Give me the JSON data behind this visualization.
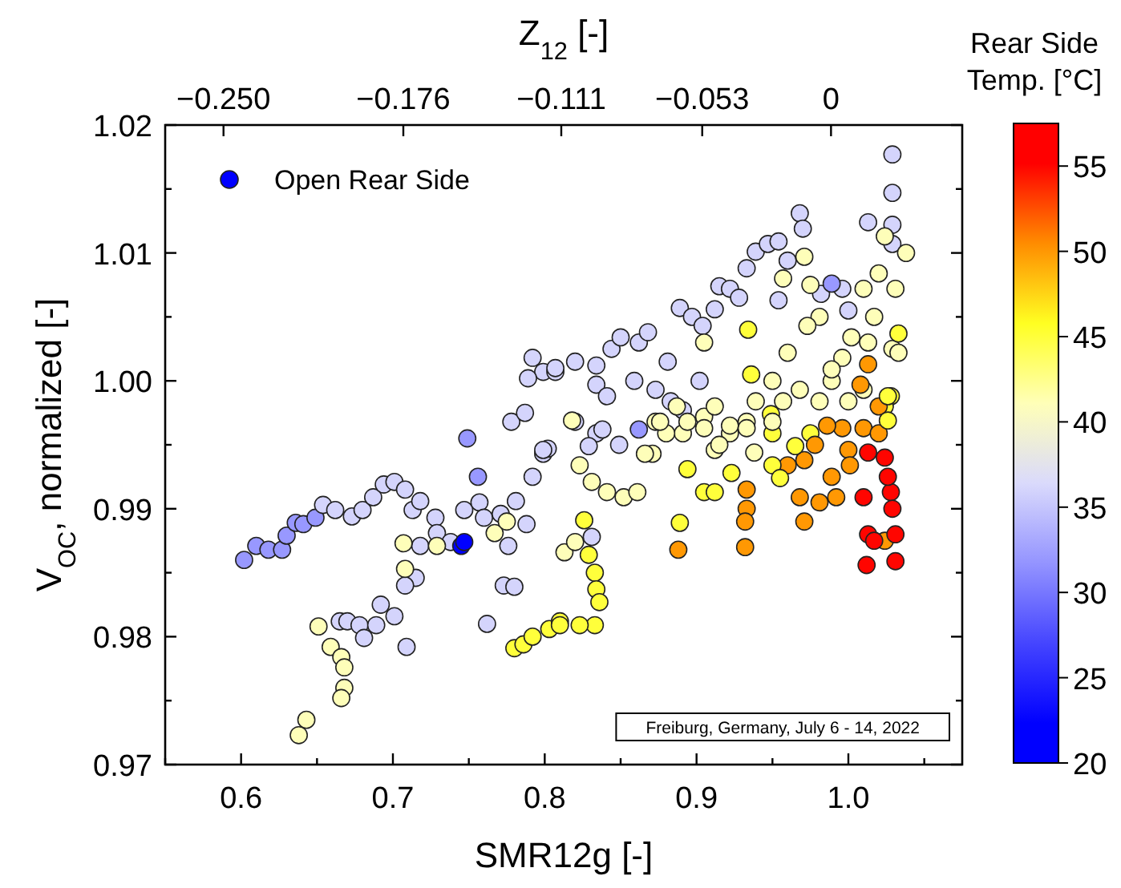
{
  "chart_data": {
    "type": "scatter",
    "xlabel": "SMR12g [-]",
    "ylabel": "V$_{OC}$, normalized [-]",
    "x2label": "Z$_{12}$ [-]",
    "clabel": "Rear Side Temp. [°C]",
    "xlim": [
      0.55,
      1.075
    ],
    "xticks": [
      {
        "value": 0.55,
        "label": null
      },
      0.6,
      {
        "value": 0.65,
        "label": null
      },
      0.7,
      {
        "value": 0.75,
        "label": null
      },
      0.8,
      {
        "value": 0.85,
        "label": null
      },
      0.9,
      {
        "value": 0.95,
        "label": null
      },
      {
        "value": 1,
        "label": "1.0"
      },
      {
        "value": 1.05,
        "label": null
      }
    ],
    "x2lim": [
      -0.274,
      0.054
    ],
    "x2ticks": [
      {
        "value": -0.25,
        "label": "−0.250"
      },
      {
        "value": -0.176,
        "label": "−0.176"
      },
      {
        "value": -0.111,
        "label": "−0.111"
      },
      {
        "value": -0.053,
        "label": "−0.053"
      },
      0
    ],
    "ylim": [
      0.97,
      1.02
    ],
    "yticks": [
      0.97,
      {
        "value": 0.975,
        "label": null
      },
      0.98,
      {
        "value": 0.985,
        "label": null
      },
      0.99,
      {
        "value": 0.995,
        "label": null
      },
      {
        "value": 1,
        "label": "1.00"
      },
      {
        "value": 1.005,
        "label": null
      },
      1.01,
      {
        "value": 1.015,
        "label": null
      },
      1.02
    ],
    "clim": [
      20,
      57.5
    ],
    "cticks": [
      20,
      25,
      30,
      35,
      40,
      45,
      50,
      55
    ],
    "legend": "top left",
    "marker": "circle",
    "annotations": [
      "Freiburg, Germany, July 6 - 14, 2022"
    ],
    "series": [
      {
        "name": "Open Rear Side",
        "x": [
          0.602,
          0.61,
          0.618,
          0.627,
          0.63,
          0.636,
          0.641,
          0.649,
          0.654,
          0.662,
          0.673,
          0.68,
          0.687,
          0.694,
          0.701,
          0.708,
          0.713,
          0.718,
          0.728,
          0.729,
          0.738,
          0.747,
          0.757,
          0.76,
          0.771,
          0.781,
          0.792,
          0.799,
          0.802,
          0.778,
          0.787,
          0.788,
          0.776,
          0.773,
          0.78,
          0.762,
          0.749,
          0.756,
          0.745,
          0.747,
          0.665,
          0.67,
          0.678,
          0.681,
          0.689,
          0.692,
          0.701,
          0.709,
          0.718,
          0.715,
          0.708,
          0.707,
          0.708,
          0.651,
          0.659,
          0.666,
          0.668,
          0.668,
          0.666,
          0.643,
          0.638,
          0.729,
          0.767,
          0.775,
          0.78,
          0.786,
          0.792,
          0.803,
          0.81,
          0.792,
          0.799,
          0.807,
          0.789,
          0.807,
          0.82,
          0.834,
          0.844,
          0.85,
          0.862,
          0.868,
          0.881,
          0.889,
          0.897,
          0.904,
          0.912,
          0.915,
          0.922,
          0.928,
          0.933,
          0.939,
          0.947,
          0.954,
          0.96,
          0.968,
          0.97,
          0.834,
          0.841,
          0.859,
          0.873,
          0.883,
          0.891,
          0.902,
          0.954,
          0.82,
          0.834,
          0.849,
          0.799,
          1.029,
          1.029,
          1.029,
          1.029,
          1.013,
          0.996,
          1.0,
          0.982,
          0.989,
          0.862,
          1.024,
          1.02,
          1.031,
          1.01,
          1.017,
          1.029,
          1.002,
          0.981,
          0.975,
          0.971,
          0.973,
          0.96,
          0.95,
          0.939,
          0.933,
          0.922,
          0.912,
          0.905,
          0.891,
          0.88,
          0.873,
          0.871,
          0.905,
          0.957,
          1.038,
          0.996,
          1.01,
          0.989,
          0.934,
          0.936,
          1.033,
          1.028,
          0.949,
          0.975,
          1.024,
          1.013,
          1.008,
          1.02,
          0.996,
          0.986,
          0.978,
          0.971,
          0.96,
          0.968,
          0.971,
          0.981,
          0.992,
          0.989,
          1.0,
          1.01,
          1.02,
          0.933,
          0.933,
          0.932,
          0.932,
          0.888,
          1.024,
          1.001,
          1.013,
          1.01,
          1.024,
          1.028,
          1.029,
          1.031,
          1.031,
          1.013,
          1.012,
          1.017,
          1.026,
          0.889,
          0.894,
          0.905,
          0.912,
          0.923,
          0.826,
          0.829,
          0.833,
          0.834,
          0.836,
          0.833,
          0.823,
          0.81,
          0.95,
          0.955,
          0.965,
          0.95,
          1.026,
          1.026,
          0.813,
          0.82,
          0.823,
          0.831,
          0.841,
          0.852,
          0.861,
          0.866,
          0.876,
          0.894,
          0.905,
          0.915,
          0.922,
          0.933,
          0.938,
          0.95,
          0.957,
          0.968,
          0.981,
          0.989,
          1.0,
          1.013,
          1.033,
          0.912,
          0.887,
          0.818,
          0.829,
          0.838,
          0.831
        ],
        "values": [
          0.986,
          0.9871,
          0.9868,
          0.9868,
          0.9879,
          0.9889,
          0.9888,
          0.9893,
          0.9903,
          0.9899,
          0.9894,
          0.9899,
          0.9909,
          0.9919,
          0.9921,
          0.9915,
          0.9899,
          0.9906,
          0.9893,
          0.9881,
          0.9874,
          0.9899,
          0.9905,
          0.9893,
          0.9896,
          0.9906,
          0.9925,
          0.9943,
          0.9947,
          0.9968,
          0.9975,
          0.9888,
          0.9871,
          0.984,
          0.9839,
          0.981,
          0.9955,
          0.9925,
          0.9871,
          0.9874,
          0.9812,
          0.9812,
          0.9809,
          0.9799,
          0.9809,
          0.9825,
          0.9816,
          0.9792,
          0.9871,
          0.9846,
          0.984,
          0.9873,
          0.9853,
          0.9808,
          0.9792,
          0.9784,
          0.9776,
          0.976,
          0.9752,
          0.9735,
          0.9723,
          0.9871,
          0.9881,
          0.989,
          0.9791,
          0.9794,
          0.98,
          0.9806,
          0.9812,
          1.0018,
          1.0007,
          1.0007,
          1.0002,
          1.001,
          1.0015,
          1.0012,
          1.0025,
          1.0034,
          1.003,
          1.0038,
          1.0015,
          1.0057,
          1.005,
          1.0043,
          1.0056,
          1.0074,
          1.0072,
          1.0065,
          1.0088,
          1.0101,
          1.0107,
          1.0109,
          1.0094,
          1.0131,
          1.0119,
          0.9997,
          0.9988,
          1.0,
          0.9993,
          0.9984,
          0.9977,
          1.0,
          1.0063,
          0.9968,
          0.9959,
          0.995,
          0.9946,
          1.0177,
          1.0147,
          1.0122,
          1.0107,
          1.0124,
          1.0072,
          1.0055,
          1.0068,
          1.0076,
          0.9962,
          1.0113,
          1.0084,
          1.0072,
          1.0072,
          1.005,
          1.0025,
          1.0034,
          1.005,
          1.0075,
          1.0097,
          1.0043,
          1.0022,
          1.0,
          0.9984,
          0.9968,
          0.9959,
          0.9946,
          0.9972,
          0.9959,
          0.9959,
          0.9968,
          0.9943,
          1.003,
          1.008,
          1.01,
          1.0018,
          0.9993,
          1.0,
          1.004,
          1.0005,
          1.0037,
          0.9988,
          0.9974,
          0.9959,
          0.998,
          1.0013,
          0.9997,
          0.998,
          0.9963,
          0.9965,
          0.995,
          0.9938,
          0.9934,
          0.9909,
          0.989,
          0.9905,
          0.9909,
          0.9925,
          0.9946,
          0.9963,
          0.9959,
          0.9915,
          0.99,
          0.989,
          0.987,
          0.9868,
          0.9875,
          0.9934,
          0.9944,
          0.9909,
          0.994,
          0.9913,
          0.99,
          0.988,
          0.9859,
          0.988,
          0.9856,
          0.9875,
          0.9925,
          0.9889,
          0.9931,
          0.9913,
          0.9913,
          0.9928,
          0.9891,
          0.9864,
          0.985,
          0.9837,
          0.9827,
          0.9809,
          0.9809,
          0.9809,
          0.9934,
          0.9924,
          0.9949,
          0.9959,
          0.9969,
          0.9988,
          0.9866,
          0.9874,
          0.9934,
          0.9921,
          0.9913,
          0.9909,
          0.9913,
          0.9943,
          0.9968,
          0.9968,
          0.9963,
          0.995,
          0.9965,
          0.9963,
          0.9944,
          0.9968,
          0.9984,
          0.9993,
          0.9984,
          1.0009,
          0.9984,
          1.003,
          1.0022,
          0.998,
          0.998,
          0.9969,
          0.9949,
          0.9962,
          0.9878
        ],
        "cvalues": [
          32,
          32,
          32,
          32,
          32,
          32,
          32,
          32,
          36,
          36,
          36,
          36,
          36,
          36,
          36,
          36,
          36,
          36,
          36,
          36,
          36,
          36,
          36,
          36,
          36,
          36,
          36,
          36,
          36,
          36,
          36,
          36,
          36,
          36,
          36,
          36,
          32,
          32,
          22,
          22,
          36,
          36,
          36,
          36,
          36,
          36,
          36,
          36,
          36,
          36,
          36,
          41,
          41,
          41,
          41,
          41,
          41,
          41,
          41,
          41,
          41,
          41,
          41,
          41,
          45,
          45,
          45,
          45,
          45,
          36,
          36,
          36,
          36,
          36,
          36,
          36,
          36,
          36,
          36,
          36,
          36,
          36,
          36,
          36,
          36,
          36,
          36,
          36,
          36,
          36,
          36,
          36,
          36,
          36,
          36,
          36,
          36,
          36,
          36,
          36,
          36,
          36,
          36,
          36,
          36,
          36,
          36,
          36,
          36,
          36,
          36,
          36,
          36,
          36,
          36,
          32,
          32,
          41,
          41,
          41,
          41,
          41,
          41,
          41,
          41,
          41,
          41,
          41,
          41,
          41,
          41,
          41,
          41,
          41,
          41,
          41,
          41,
          41,
          41,
          41,
          41,
          41,
          41,
          41,
          41,
          45,
          45,
          45,
          45,
          45,
          45,
          45,
          50,
          50,
          50,
          50,
          50,
          50,
          50,
          50,
          50,
          50,
          50,
          50,
          50,
          50,
          50,
          50,
          50,
          50,
          50,
          50,
          50,
          50,
          50,
          55,
          55,
          55,
          55,
          55,
          55,
          55,
          55,
          55,
          55,
          55,
          45,
          45,
          45,
          45,
          45,
          45,
          45,
          45,
          45,
          45,
          45,
          45,
          45,
          45,
          45,
          45,
          45,
          45,
          45,
          41,
          41,
          41,
          41,
          41,
          41,
          41,
          41,
          41,
          41,
          41,
          41,
          41,
          41,
          41,
          41,
          41,
          41,
          41,
          41,
          41,
          41,
          41,
          41,
          41,
          41,
          36,
          36,
          36
        ]
      }
    ]
  }
}
